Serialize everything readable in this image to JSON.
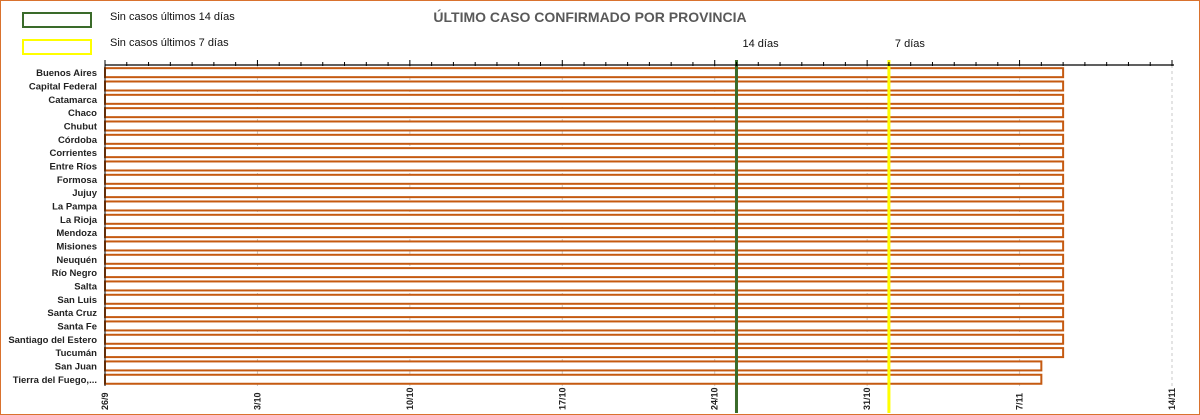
{
  "legend": [
    {
      "label": "Sin casos últimos 14 días",
      "color": "#3a6b2a"
    },
    {
      "label": "Sin casos últimos 7 días",
      "color": "#ffff00"
    }
  ],
  "chart_data": {
    "type": "bar",
    "orientation": "horizontal",
    "title": "ÚLTIMO CASO CONFIRMADO POR PROVINCIA",
    "xlabel": "",
    "ylabel": "",
    "categories": [
      "Buenos Aires",
      "Capital Federal",
      "Catamarca",
      "Chaco",
      "Chubut",
      "Córdoba",
      "Corrientes",
      "Entre Ríos",
      "Formosa",
      "Jujuy",
      "La Pampa",
      "La Rioja",
      "Mendoza",
      "Misiones",
      "Neuquén",
      "Río Negro",
      "Salta",
      "San Luis",
      "Santa Cruz",
      "Santa Fe",
      "Santiago del Estero",
      "Tucumán",
      "San Juan",
      "Tierra del Fuego,..."
    ],
    "values": [
      44,
      44,
      44,
      44,
      44,
      44,
      44,
      44,
      44,
      44,
      44,
      44,
      44,
      44,
      44,
      44,
      44,
      44,
      44,
      44,
      44,
      44,
      43,
      43
    ],
    "value_unit": "days after 26/9",
    "x_ticks": [
      {
        "v": 0,
        "label": "26/9"
      },
      {
        "v": 7,
        "label": "3/10"
      },
      {
        "v": 14,
        "label": "10/10"
      },
      {
        "v": 21,
        "label": "17/10"
      },
      {
        "v": 28,
        "label": "24/10"
      },
      {
        "v": 35,
        "label": "31/10"
      },
      {
        "v": 42,
        "label": "7/11"
      },
      {
        "v": 49,
        "label": "14/11"
      }
    ],
    "xlim": [
      0,
      49
    ],
    "reference_lines": [
      {
        "label": "14 días",
        "value": 29,
        "color": "#3a6b2a"
      },
      {
        "label": "7 días",
        "value": 36,
        "color": "#ffff00"
      }
    ],
    "bar_color": "#c55a11",
    "grid": "vertical dashed"
  }
}
